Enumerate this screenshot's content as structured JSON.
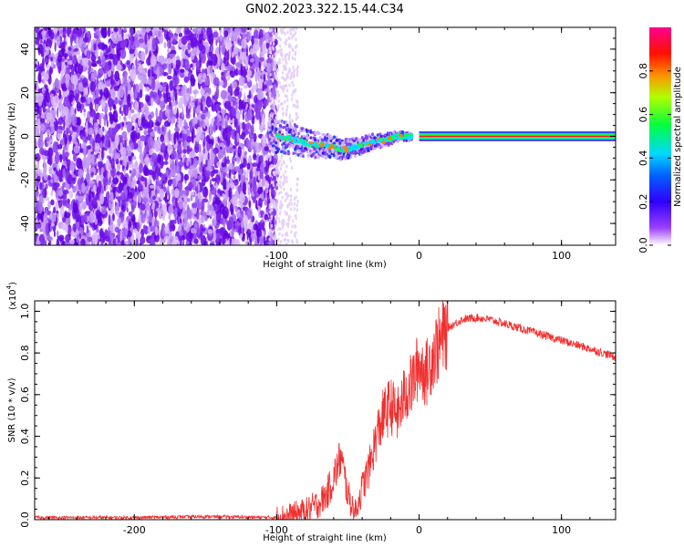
{
  "title": "GN02.2023.322.15.44.C34",
  "colors": {
    "spectrogram_low": "#cfa8f5",
    "spectrogram_mid": "#6a00e8",
    "snr_line": "#f03030",
    "colorbar": [
      "#ffffff",
      "#7b00ff",
      "#0000ff",
      "#00c8ff",
      "#00ff40",
      "#c8ff00",
      "#ff8800",
      "#ff0000",
      "#ff0090"
    ]
  },
  "chart_data": [
    {
      "type": "heatmap",
      "title": "GN02.2023.322.15.44.C34",
      "xlabel": "Height of straight line (km)",
      "ylabel": "Frequency (Hz)",
      "xlim": [
        -270,
        138
      ],
      "ylim": [
        -50,
        50
      ],
      "x_ticks": [
        -200,
        -100,
        0,
        100
      ],
      "y_ticks": [
        -40,
        -20,
        0,
        20,
        40
      ],
      "colorbar": {
        "label": "Normalized spectral amplitude",
        "range": [
          0,
          1
        ],
        "ticks": [
          0.0,
          0.2,
          0.4,
          0.6,
          0.8
        ]
      },
      "regions": [
        {
          "x_range": [
            -270,
            -100
          ],
          "frequency_range": [
            -50,
            50
          ],
          "amplitude_level": 0.1,
          "description_level": "noise"
        },
        {
          "x_range": [
            -105,
            -5
          ],
          "frequency_range": [
            -10,
            8
          ],
          "amplitude_level": 0.35
        },
        {
          "x_range": [
            0,
            138
          ],
          "frequency_range": [
            -1,
            1
          ],
          "amplitude_level": 1.0
        }
      ],
      "signal_track": {
        "x": [
          -100,
          -90,
          -80,
          -70,
          -60,
          -55,
          -50,
          -45,
          -40,
          -35,
          -30,
          -25,
          -20,
          -15,
          -10,
          -5,
          0,
          50,
          100,
          138
        ],
        "frequency": [
          0,
          -1,
          -3,
          -4,
          -5,
          -6,
          -6,
          -5,
          -4,
          -3,
          -2,
          -2,
          -1,
          0,
          0,
          0,
          0,
          0,
          0,
          0
        ]
      }
    },
    {
      "type": "line",
      "xlabel": "Height of straight line (km)",
      "ylabel": "SNR (10 * v/v)",
      "y_multiplier": "(x10",
      "y_multiplier_exp": "4",
      "y_multiplier_close": ")",
      "xlim": [
        -270,
        138
      ],
      "ylim": [
        0,
        1.05
      ],
      "x_ticks": [
        -200,
        -100,
        0,
        100
      ],
      "y_ticks": [
        0.0,
        0.2,
        0.4,
        0.6,
        0.8,
        1.0
      ],
      "series": [
        {
          "x": [
            -270,
            -200,
            -150,
            -100,
            -90,
            -80,
            -70,
            -65,
            -60,
            -55,
            -50,
            -45,
            -40,
            -35,
            -30,
            -25,
            -20,
            -15,
            -10,
            -5,
            0,
            5,
            10,
            15,
            20,
            30,
            40,
            50,
            60,
            80,
            100,
            120,
            138
          ],
          "y": [
            0.01,
            0.01,
            0.015,
            0.01,
            0.02,
            0.04,
            0.08,
            0.12,
            0.2,
            0.3,
            0.12,
            0.03,
            0.15,
            0.25,
            0.4,
            0.5,
            0.55,
            0.5,
            0.6,
            0.65,
            0.75,
            0.7,
            0.8,
            0.85,
            0.92,
            0.96,
            0.97,
            0.96,
            0.94,
            0.9,
            0.86,
            0.82,
            0.78
          ]
        }
      ]
    }
  ]
}
